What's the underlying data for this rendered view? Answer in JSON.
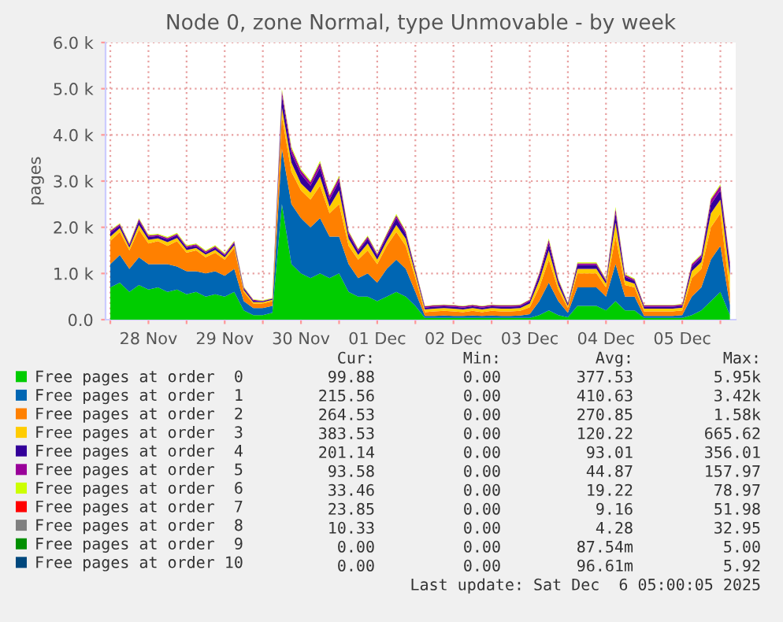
{
  "chart_data": {
    "type": "area",
    "stacked": true,
    "title": "Node 0, zone Normal, type Unmovable - by week",
    "ylabel": "pages",
    "x": [
      "2025-11-28T00:00",
      "2025-11-28T03:00",
      "2025-11-28T06:00",
      "2025-11-28T09:00",
      "2025-11-28T12:00",
      "2025-11-28T15:00",
      "2025-11-28T18:00",
      "2025-11-28T21:00",
      "2025-11-29T00:00",
      "2025-11-29T03:00",
      "2025-11-29T06:00",
      "2025-11-29T09:00",
      "2025-11-29T12:00",
      "2025-11-29T15:00",
      "2025-11-29T18:00",
      "2025-11-29T21:00",
      "2025-11-30T00:00",
      "2025-11-30T03:00",
      "2025-11-30T06:00",
      "2025-11-30T09:00",
      "2025-11-30T12:00",
      "2025-11-30T15:00",
      "2025-11-30T18:00",
      "2025-11-30T21:00",
      "2025-12-01T00:00",
      "2025-12-01T03:00",
      "2025-12-01T06:00",
      "2025-12-01T09:00",
      "2025-12-01T12:00",
      "2025-12-01T15:00",
      "2025-12-01T18:00",
      "2025-12-01T21:00",
      "2025-12-02T00:00",
      "2025-12-02T03:00",
      "2025-12-02T06:00",
      "2025-12-02T09:00",
      "2025-12-02T12:00",
      "2025-12-02T15:00",
      "2025-12-02T18:00",
      "2025-12-02T21:00",
      "2025-12-03T00:00",
      "2025-12-03T03:00",
      "2025-12-03T06:00",
      "2025-12-03T09:00",
      "2025-12-03T12:00",
      "2025-12-03T15:00",
      "2025-12-03T18:00",
      "2025-12-03T21:00",
      "2025-12-04T00:00",
      "2025-12-04T03:00",
      "2025-12-04T06:00",
      "2025-12-04T09:00",
      "2025-12-04T12:00",
      "2025-12-04T15:00",
      "2025-12-04T18:00",
      "2025-12-04T21:00",
      "2025-12-05T00:00",
      "2025-12-05T03:00",
      "2025-12-05T06:00",
      "2025-12-05T09:00",
      "2025-12-05T12:00",
      "2025-12-05T15:00",
      "2025-12-05T18:00",
      "2025-12-05T21:00",
      "2025-12-06T00:00",
      "2025-12-06T03:00"
    ],
    "xlim": [
      "2025-11-27T22:30",
      "2025-12-06T04:50"
    ],
    "xticks": [
      {
        "value": "2025-11-28T00:00",
        "label": null
      },
      {
        "value": "2025-11-28T12:00",
        "label": "28 Nov"
      },
      {
        "value": "2025-11-29T00:00",
        "label": null
      },
      {
        "value": "2025-11-29T12:00",
        "label": "29 Nov"
      },
      {
        "value": "2025-11-30T00:00",
        "label": null
      },
      {
        "value": "2025-11-30T12:00",
        "label": "30 Nov"
      },
      {
        "value": "2025-12-01T00:00",
        "label": null
      },
      {
        "value": "2025-12-01T12:00",
        "label": "01 Dec"
      },
      {
        "value": "2025-12-02T00:00",
        "label": null
      },
      {
        "value": "2025-12-02T12:00",
        "label": "02 Dec"
      },
      {
        "value": "2025-12-03T00:00",
        "label": null
      },
      {
        "value": "2025-12-03T12:00",
        "label": "03 Dec"
      },
      {
        "value": "2025-12-04T00:00",
        "label": null
      },
      {
        "value": "2025-12-04T12:00",
        "label": "04 Dec"
      },
      {
        "value": "2025-12-05T00:00",
        "label": null
      },
      {
        "value": "2025-12-05T12:00",
        "label": "05 Dec"
      },
      {
        "value": "2025-12-06T00:00",
        "label": null
      }
    ],
    "ylim": [
      0,
      6000
    ],
    "yticks": [
      {
        "value": 0,
        "label": "0.0"
      },
      {
        "value": 1000,
        "label": "1.0 k"
      },
      {
        "value": 2000,
        "label": "2.0 k"
      },
      {
        "value": 3000,
        "label": "3.0 k"
      },
      {
        "value": 4000,
        "label": "4.0 k"
      },
      {
        "value": 5000,
        "label": "5.0 k"
      },
      {
        "value": 6000,
        "label": "6.0 k"
      }
    ],
    "grid": true,
    "legend": "bottom",
    "series": [
      {
        "name": "Free pages at order  0",
        "color": "#00cc00",
        "values": [
          700,
          800,
          600,
          750,
          650,
          700,
          600,
          650,
          550,
          600,
          500,
          550,
          500,
          600,
          200,
          100,
          100,
          150,
          2500,
          1200,
          1000,
          900,
          1000,
          900,
          1000,
          600,
          500,
          500,
          400,
          500,
          600,
          500,
          300,
          40,
          40,
          40,
          40,
          40,
          40,
          40,
          40,
          40,
          40,
          40,
          40,
          100,
          200,
          100,
          50,
          300,
          300,
          300,
          200,
          400,
          200,
          200,
          40,
          40,
          40,
          40,
          40,
          100,
          200,
          400,
          600,
          100
        ]
      },
      {
        "name": "Free pages at order  1",
        "color": "#0066b3",
        "values": [
          500,
          600,
          500,
          600,
          550,
          500,
          600,
          500,
          500,
          450,
          500,
          500,
          450,
          500,
          200,
          150,
          150,
          150,
          1200,
          1300,
          1200,
          1100,
          1200,
          900,
          800,
          600,
          400,
          500,
          400,
          600,
          700,
          600,
          300,
          40,
          40,
          50,
          40,
          40,
          50,
          40,
          50,
          40,
          40,
          50,
          80,
          300,
          600,
          300,
          100,
          400,
          400,
          400,
          300,
          800,
          300,
          300,
          40,
          40,
          40,
          40,
          60,
          400,
          500,
          900,
          1000,
          220
        ]
      },
      {
        "name": "Free pages at order  2",
        "color": "#ff8000",
        "values": [
          500,
          500,
          400,
          600,
          450,
          500,
          400,
          550,
          400,
          450,
          350,
          400,
          350,
          450,
          200,
          100,
          100,
          100,
          700,
          700,
          600,
          600,
          700,
          500,
          700,
          400,
          400,
          500,
          400,
          500,
          600,
          500,
          300,
          80,
          100,
          100,
          100,
          80,
          100,
          80,
          100,
          100,
          100,
          100,
          150,
          300,
          500,
          250,
          100,
          300,
          300,
          300,
          200,
          600,
          250,
          200,
          100,
          100,
          100,
          100,
          100,
          400,
          400,
          700,
          700,
          260
        ]
      },
      {
        "name": "Free pages at order  3",
        "color": "#ffcc00",
        "values": [
          100,
          80,
          60,
          100,
          80,
          60,
          80,
          70,
          60,
          50,
          60,
          60,
          50,
          60,
          40,
          30,
          30,
          30,
          200,
          200,
          150,
          150,
          200,
          150,
          300,
          150,
          100,
          150,
          100,
          100,
          150,
          150,
          100,
          60,
          60,
          60,
          60,
          60,
          60,
          60,
          60,
          60,
          60,
          60,
          80,
          150,
          200,
          100,
          50,
          100,
          100,
          100,
          80,
          300,
          100,
          80,
          60,
          60,
          60,
          60,
          60,
          150,
          150,
          300,
          300,
          380
        ]
      },
      {
        "name": "Free pages at order  4",
        "color": "#330099",
        "values": [
          80,
          60,
          50,
          90,
          60,
          50,
          60,
          60,
          50,
          50,
          40,
          50,
          40,
          50,
          40,
          30,
          20,
          20,
          250,
          200,
          200,
          150,
          200,
          150,
          200,
          100,
          80,
          100,
          80,
          100,
          150,
          100,
          60,
          40,
          40,
          40,
          40,
          40,
          40,
          40,
          40,
          40,
          40,
          40,
          50,
          100,
          150,
          80,
          40,
          80,
          80,
          80,
          50,
          200,
          80,
          60,
          40,
          40,
          40,
          40,
          40,
          100,
          100,
          200,
          200,
          200
        ]
      },
      {
        "name": "Free pages at order  5",
        "color": "#990099",
        "values": [
          40,
          30,
          30,
          40,
          30,
          30,
          30,
          30,
          30,
          30,
          30,
          30,
          30,
          30,
          20,
          20,
          10,
          10,
          100,
          100,
          80,
          80,
          100,
          80,
          80,
          50,
          40,
          50,
          40,
          50,
          60,
          50,
          30,
          30,
          30,
          30,
          30,
          30,
          30,
          30,
          30,
          30,
          30,
          30,
          30,
          50,
          80,
          40,
          20,
          40,
          40,
          40,
          30,
          100,
          40,
          30,
          30,
          30,
          30,
          30,
          30,
          50,
          50,
          100,
          100,
          90
        ]
      },
      {
        "name": "Free pages at order  6",
        "color": "#ccff00",
        "values": [
          20,
          20,
          20,
          20,
          20,
          20,
          20,
          20,
          20,
          20,
          20,
          20,
          20,
          20,
          10,
          10,
          10,
          10,
          40,
          40,
          30,
          30,
          40,
          30,
          30,
          20,
          20,
          20,
          20,
          20,
          30,
          20,
          20,
          10,
          10,
          10,
          10,
          10,
          10,
          10,
          10,
          10,
          10,
          10,
          10,
          20,
          30,
          20,
          10,
          20,
          20,
          20,
          20,
          40,
          20,
          20,
          10,
          10,
          10,
          10,
          10,
          20,
          20,
          30,
          30,
          30
        ]
      },
      {
        "name": "Free pages at order  7",
        "color": "#ff0000",
        "values": [
          null,
          null,
          null,
          null,
          null,
          null,
          null,
          null,
          null,
          null,
          null,
          null,
          null,
          null,
          null,
          null,
          null,
          null,
          null,
          null,
          null,
          null,
          null,
          null,
          null,
          null,
          null,
          null,
          null,
          null,
          null,
          null,
          null,
          null,
          null,
          null,
          null,
          null,
          null,
          null,
          null,
          null,
          null,
          null,
          null,
          null,
          null,
          null,
          null,
          null,
          null,
          null,
          null,
          null,
          null,
          null,
          null,
          null,
          null,
          null,
          null,
          null,
          null,
          null,
          null,
          null
        ]
      },
      {
        "name": "Free pages at order  8",
        "color": "#808080",
        "values": [
          null,
          null,
          null,
          null,
          null,
          null,
          null,
          null,
          null,
          null,
          null,
          null,
          null,
          null,
          null,
          null,
          null,
          null,
          null,
          null,
          null,
          null,
          null,
          null,
          null,
          null,
          null,
          null,
          null,
          null,
          null,
          null,
          null,
          null,
          null,
          null,
          null,
          null,
          null,
          null,
          null,
          null,
          null,
          null,
          null,
          null,
          null,
          null,
          null,
          null,
          null,
          null,
          null,
          null,
          null,
          null,
          null,
          null,
          null,
          null,
          null,
          null,
          null,
          null,
          null,
          null
        ]
      },
      {
        "name": "Free pages at order  9",
        "color": "#008f00",
        "values": [
          null,
          null,
          null,
          null,
          null,
          null,
          null,
          null,
          null,
          null,
          null,
          null,
          null,
          null,
          null,
          null,
          null,
          null,
          null,
          null,
          null,
          null,
          null,
          null,
          null,
          null,
          null,
          null,
          null,
          null,
          null,
          null,
          null,
          null,
          null,
          null,
          null,
          null,
          null,
          null,
          null,
          null,
          null,
          null,
          null,
          null,
          null,
          null,
          null,
          null,
          null,
          null,
          null,
          null,
          null,
          null,
          null,
          null,
          null,
          null,
          null,
          null,
          null,
          null,
          null,
          null
        ]
      },
      {
        "name": "Free pages at order 10",
        "color": "#00487d",
        "values": [
          null,
          null,
          null,
          null,
          null,
          null,
          null,
          null,
          null,
          null,
          null,
          null,
          null,
          null,
          null,
          null,
          null,
          null,
          null,
          null,
          null,
          null,
          null,
          null,
          null,
          null,
          null,
          null,
          null,
          null,
          null,
          null,
          null,
          null,
          null,
          null,
          null,
          null,
          null,
          null,
          null,
          null,
          null,
          null,
          null,
          null,
          null,
          null,
          null,
          null,
          null,
          null,
          null,
          null,
          null,
          null,
          null,
          null,
          null,
          null,
          null,
          null,
          null,
          null,
          null,
          null
        ]
      }
    ],
    "annotations": [
      "Cur:",
      "Min:",
      "Avg:",
      "Max:",
      "99.88",
      "0.00",
      "377.53",
      "5.95k",
      "215.56",
      "0.00",
      "410.63",
      "3.42k",
      "264.53",
      "0.00",
      "270.85",
      "1.58k",
      "383.53",
      "0.00",
      "120.22",
      "665.62",
      "201.14",
      "0.00",
      "93.01",
      "356.01",
      "93.58",
      "0.00",
      "44.87",
      "157.97",
      "33.46",
      "0.00",
      "19.22",
      "78.97",
      "23.85",
      "0.00",
      "9.16",
      "51.98",
      "10.33",
      "0.00",
      "4.28",
      "32.95",
      "0.00",
      "0.00",
      "87.54m",
      "5.00",
      "0.00",
      "0.00",
      "96.61m",
      "5.92",
      "Last update: Sat Dec  6 05:00:05 2025"
    ]
  }
}
